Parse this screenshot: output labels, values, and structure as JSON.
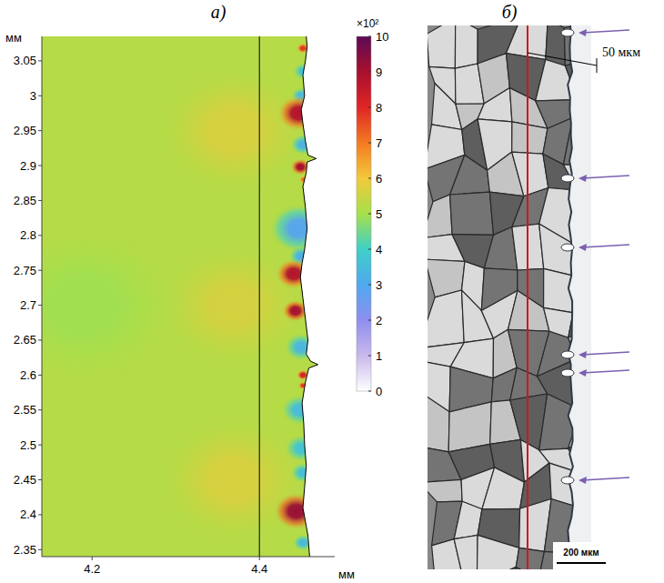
{
  "chart_data": {
    "type": "heatmap",
    "panel_label": "а)",
    "xlabel": "мм",
    "ylabel": "мм",
    "xlim": [
      4.14,
      4.49
    ],
    "xticks": [
      4.2,
      4.4
    ],
    "ylim": [
      2.34,
      3.085
    ],
    "yticks": [
      2.35,
      2.4,
      2.45,
      2.5,
      2.55,
      2.6,
      2.65,
      2.7,
      2.75,
      2.8,
      2.85,
      2.9,
      2.95,
      3,
      3.05
    ],
    "reference_x": 4.4,
    "background": 520,
    "spots": [
      {
        "x": 4.37,
        "y": 2.95,
        "value": 565,
        "size": 0.09
      },
      {
        "x": 4.37,
        "y": 2.7,
        "value": 560,
        "size": 0.09
      },
      {
        "x": 4.37,
        "y": 2.45,
        "value": 565,
        "size": 0.09
      },
      {
        "x": 4.19,
        "y": 2.7,
        "value": 495,
        "size": 0.12
      },
      {
        "x": 4.447,
        "y": 2.81,
        "value": 290,
        "size": 0.035
      },
      {
        "x": 4.45,
        "y": 2.64,
        "value": 340,
        "size": 0.02
      },
      {
        "x": 4.452,
        "y": 2.93,
        "value": 330,
        "size": 0.015
      },
      {
        "x": 4.448,
        "y": 2.55,
        "value": 350,
        "size": 0.022
      },
      {
        "x": 4.45,
        "y": 2.495,
        "value": 370,
        "size": 0.02
      },
      {
        "x": 4.452,
        "y": 2.46,
        "value": 360,
        "size": 0.015
      },
      {
        "x": 4.45,
        "y": 3.0,
        "value": 340,
        "size": 0.012
      },
      {
        "x": 4.452,
        "y": 2.36,
        "value": 340,
        "size": 0.012
      },
      {
        "x": 4.452,
        "y": 3.035,
        "value": 370,
        "size": 0.012
      },
      {
        "x": 4.45,
        "y": 2.77,
        "value": 320,
        "size": 0.015
      },
      {
        "x": 4.447,
        "y": 2.975,
        "value": 880,
        "size": 0.026
      },
      {
        "x": 4.449,
        "y": 2.898,
        "value": 900,
        "size": 0.012
      },
      {
        "x": 4.441,
        "y": 2.745,
        "value": 880,
        "size": 0.022
      },
      {
        "x": 4.443,
        "y": 2.692,
        "value": 900,
        "size": 0.016
      },
      {
        "x": 4.444,
        "y": 2.405,
        "value": 920,
        "size": 0.027
      },
      {
        "x": 4.452,
        "y": 2.6,
        "value": 820,
        "size": 0.008
      },
      {
        "x": 4.452,
        "y": 2.585,
        "value": 780,
        "size": 0.006
      },
      {
        "x": 4.452,
        "y": 3.068,
        "value": 780,
        "size": 0.008
      },
      {
        "x": 4.453,
        "y": 2.88,
        "value": 720,
        "size": 0.006
      }
    ],
    "surface": {
      "x": [
        4.456,
        4.457,
        4.455,
        4.452,
        4.454,
        4.45,
        4.452,
        4.455,
        4.458,
        4.468,
        4.457,
        4.456,
        4.452,
        4.455,
        4.457,
        4.454,
        4.451,
        4.449,
        4.452,
        4.455,
        4.458,
        4.456,
        4.461,
        4.47,
        4.459,
        4.455,
        4.451,
        4.453,
        4.454,
        4.456,
        4.454,
        4.452,
        4.455,
        4.458,
        4.46
      ],
      "y": [
        3.085,
        3.07,
        3.05,
        3.03,
        3.0,
        2.98,
        2.96,
        2.935,
        2.915,
        2.91,
        2.905,
        2.89,
        2.87,
        2.84,
        2.81,
        2.78,
        2.76,
        2.74,
        2.71,
        2.68,
        2.65,
        2.63,
        2.62,
        2.615,
        2.61,
        2.59,
        2.56,
        2.53,
        2.5,
        2.47,
        2.44,
        2.41,
        2.39,
        2.37,
        2.34
      ]
    },
    "colorbar": {
      "range": [
        0,
        1000
      ],
      "multiplier": "×10²",
      "ticks": [
        {
          "value": 0,
          "label": "0"
        },
        {
          "value": 100,
          "label": "1"
        },
        {
          "value": 200,
          "label": "2"
        },
        {
          "value": 300,
          "label": "3"
        },
        {
          "value": 400,
          "label": "4"
        },
        {
          "value": 500,
          "label": "5"
        },
        {
          "value": 600,
          "label": "6"
        },
        {
          "value": 700,
          "label": "7"
        },
        {
          "value": 800,
          "label": "8"
        },
        {
          "value": 900,
          "label": "9"
        },
        {
          "value": 1000,
          "label": "10"
        }
      ]
    }
  },
  "micrograph": {
    "panel_label": "б)",
    "annotation": "50 мкм",
    "scale_bar": "200 мкм"
  }
}
